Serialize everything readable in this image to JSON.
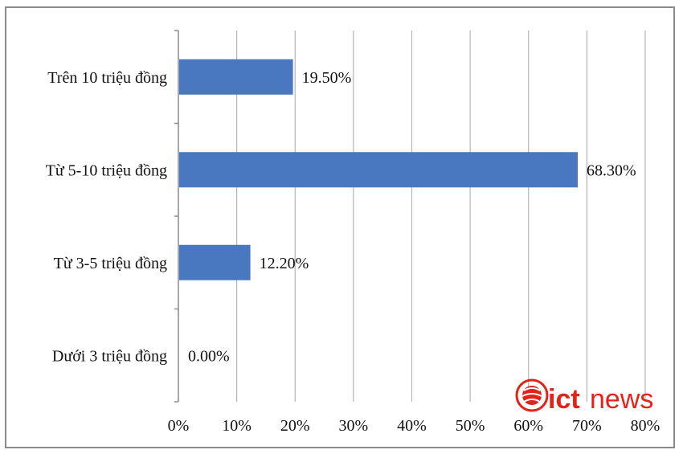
{
  "chart_data": {
    "type": "bar",
    "orientation": "horizontal",
    "title": "",
    "xlabel": "",
    "ylabel": "",
    "categories": [
      "Trên 10 triệu đồng",
      "Từ 5-10 triệu đồng",
      "Từ 3-5 triệu đồng",
      "Dưới 3 triệu đồng"
    ],
    "values": [
      19.5,
      68.3,
      12.2,
      0.0
    ],
    "value_labels": [
      "19.50%",
      "68.30%",
      "12.20%",
      "0.00%"
    ],
    "xlim": [
      0,
      80
    ],
    "x_ticks": [
      0,
      10,
      20,
      30,
      40,
      50,
      60,
      70,
      80
    ],
    "x_tick_labels": [
      "0%",
      "10%",
      "20%",
      "30%",
      "40%",
      "50%",
      "60%",
      "70%",
      "80%"
    ],
    "grid": "vertical",
    "legend": "none",
    "bar_color": "#4a78c0",
    "grid_color": "#b5b5b5"
  },
  "watermark": {
    "text_ict": "ict",
    "text_news": "news",
    "color": "#e2231a"
  }
}
